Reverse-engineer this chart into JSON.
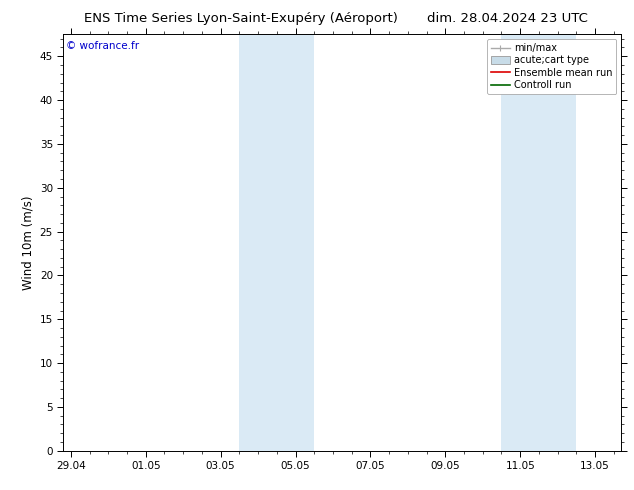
{
  "title_left": "ENS Time Series Lyon-Saint-Exupéry (Aéroport)",
  "title_right": "dim. 28.04.2024 23 UTC",
  "ylabel": "Wind 10m (m/s)",
  "ylim": [
    0,
    47.5
  ],
  "yticks": [
    0,
    5,
    10,
    15,
    20,
    25,
    30,
    35,
    40,
    45
  ],
  "xlim_days": [
    -0.2,
    14.7
  ],
  "xtick_labels": [
    "29.04",
    "01.05",
    "03.05",
    "05.05",
    "07.05",
    "09.05",
    "11.05",
    "13.05"
  ],
  "xtick_positions": [
    0,
    2,
    4,
    6,
    8,
    10,
    12,
    14
  ],
  "shaded_bands": [
    {
      "xstart": 4.5,
      "xend": 6.5
    },
    {
      "xstart": 11.5,
      "xend": 13.5
    }
  ],
  "band_color": "#daeaf5",
  "background_color": "#ffffff",
  "copyright_text": "© wofrance.fr",
  "legend_entries": [
    {
      "label": "min/max",
      "color": "#aaaaaa",
      "lw": 1.0,
      "type": "line_bars"
    },
    {
      "label": "acute;cart type",
      "color": "#c8dce8",
      "type": "box"
    },
    {
      "label": "Ensemble mean run",
      "color": "#dd0000",
      "lw": 1.2,
      "type": "line"
    },
    {
      "label": "Controll run",
      "color": "#006600",
      "lw": 1.2,
      "type": "line"
    }
  ],
  "title_fontsize": 9.5,
  "tick_fontsize": 7.5,
  "ylabel_fontsize": 8.5,
  "copyright_fontsize": 7.5,
  "legend_fontsize": 7.0
}
